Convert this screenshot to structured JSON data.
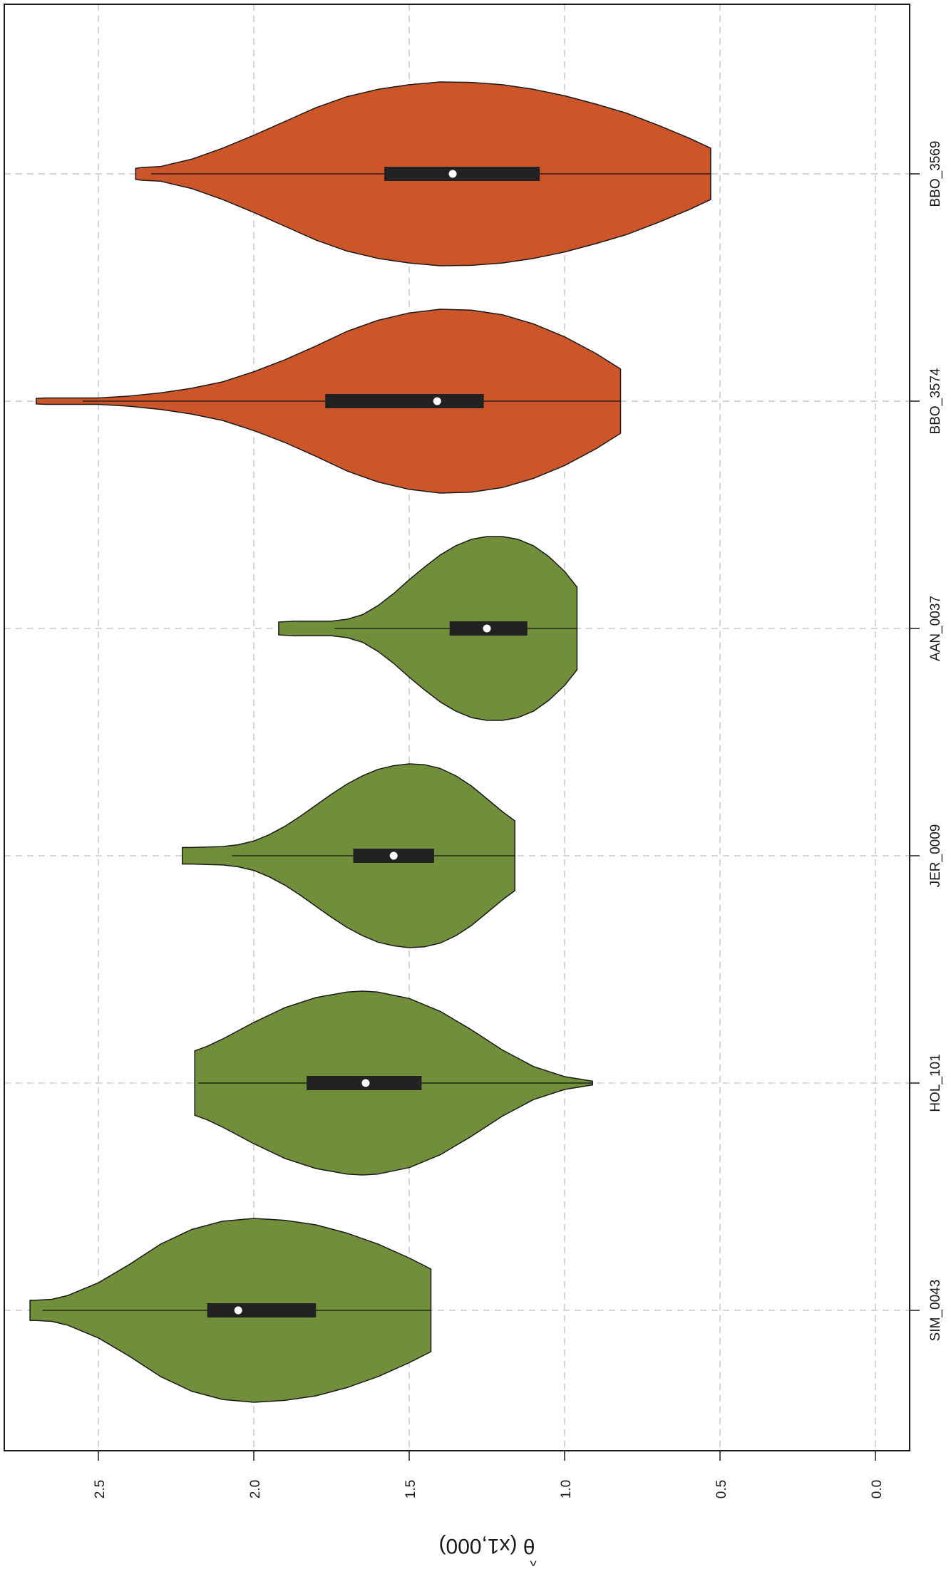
{
  "chart_data": {
    "type": "violin",
    "orientation": "rotated-90",
    "title": "",
    "value_axis": {
      "label_symbol": "θ",
      "label_hat": "^",
      "label_rest": " (x1,000)",
      "lim": [
        -0.1,
        2.82
      ],
      "ticks": [
        "0.0",
        "0.5",
        "1.0",
        "1.5",
        "2.0",
        "2.5"
      ],
      "grid": true
    },
    "colors": {
      "red_group": "#CC5529",
      "green_group": "#718E3B",
      "box": "#222222",
      "median": "#ffffff",
      "grid": "#c8c8c8",
      "outline": "#1a1a1a"
    },
    "groups": [
      {
        "name": "BBO_3569",
        "color_key": "red_group",
        "whisker_low": 0.53,
        "q1": 1.08,
        "median": 1.36,
        "q3": 1.58,
        "whisker_high": 2.33,
        "density": [
          [
            0.53,
            0.28
          ],
          [
            0.6,
            0.39
          ],
          [
            0.7,
            0.53
          ],
          [
            0.8,
            0.66
          ],
          [
            0.9,
            0.76
          ],
          [
            1.0,
            0.85
          ],
          [
            1.1,
            0.92
          ],
          [
            1.2,
            0.97
          ],
          [
            1.3,
            0.995
          ],
          [
            1.4,
            1.0
          ],
          [
            1.5,
            0.97
          ],
          [
            1.6,
            0.92
          ],
          [
            1.7,
            0.84
          ],
          [
            1.8,
            0.72
          ],
          [
            1.9,
            0.57
          ],
          [
            2.0,
            0.42
          ],
          [
            2.1,
            0.28
          ],
          [
            2.2,
            0.16
          ],
          [
            2.3,
            0.08
          ],
          [
            2.36,
            0.07
          ],
          [
            2.38,
            0.06
          ]
        ]
      },
      {
        "name": "BBO_3574",
        "color_key": "red_group",
        "whisker_low": 0.82,
        "q1": 1.26,
        "median": 1.41,
        "q3": 1.77,
        "whisker_high": 2.55,
        "density": [
          [
            0.82,
            0.35
          ],
          [
            0.9,
            0.52
          ],
          [
            1.0,
            0.7
          ],
          [
            1.1,
            0.84
          ],
          [
            1.2,
            0.94
          ],
          [
            1.3,
            0.99
          ],
          [
            1.4,
            1.0
          ],
          [
            1.5,
            0.96
          ],
          [
            1.6,
            0.88
          ],
          [
            1.7,
            0.76
          ],
          [
            1.8,
            0.6
          ],
          [
            1.9,
            0.45
          ],
          [
            2.0,
            0.32
          ],
          [
            2.1,
            0.21
          ],
          [
            2.2,
            0.14
          ],
          [
            2.3,
            0.09
          ],
          [
            2.4,
            0.055
          ],
          [
            2.5,
            0.035
          ],
          [
            2.6,
            0.035
          ],
          [
            2.67,
            0.035
          ],
          [
            2.7,
            0.03
          ]
        ]
      },
      {
        "name": "AAN_0037",
        "color_key": "green_group",
        "whisker_low": 0.96,
        "q1": 1.12,
        "median": 1.25,
        "q3": 1.37,
        "whisker_high": 1.74,
        "density": [
          [
            0.96,
            0.45
          ],
          [
            1.0,
            0.62
          ],
          [
            1.05,
            0.78
          ],
          [
            1.1,
            0.9
          ],
          [
            1.15,
            0.97
          ],
          [
            1.2,
            1.0
          ],
          [
            1.25,
            1.0
          ],
          [
            1.3,
            0.97
          ],
          [
            1.35,
            0.9
          ],
          [
            1.4,
            0.8
          ],
          [
            1.45,
            0.67
          ],
          [
            1.5,
            0.53
          ],
          [
            1.55,
            0.38
          ],
          [
            1.6,
            0.25
          ],
          [
            1.65,
            0.15
          ],
          [
            1.7,
            0.1
          ],
          [
            1.75,
            0.08
          ],
          [
            1.8,
            0.08
          ],
          [
            1.87,
            0.08
          ],
          [
            1.92,
            0.07
          ]
        ]
      },
      {
        "name": "JER_0009",
        "color_key": "green_group",
        "whisker_low": 1.16,
        "q1": 1.42,
        "median": 1.55,
        "q3": 1.68,
        "whisker_high": 2.07,
        "density": [
          [
            1.16,
            0.38
          ],
          [
            1.2,
            0.48
          ],
          [
            1.25,
            0.62
          ],
          [
            1.3,
            0.76
          ],
          [
            1.35,
            0.87
          ],
          [
            1.4,
            0.95
          ],
          [
            1.45,
            0.99
          ],
          [
            1.5,
            1.0
          ],
          [
            1.55,
            0.98
          ],
          [
            1.6,
            0.94
          ],
          [
            1.65,
            0.87
          ],
          [
            1.7,
            0.78
          ],
          [
            1.75,
            0.67
          ],
          [
            1.8,
            0.55
          ],
          [
            1.85,
            0.43
          ],
          [
            1.9,
            0.32
          ],
          [
            1.95,
            0.23
          ],
          [
            2.0,
            0.16
          ],
          [
            2.05,
            0.12
          ],
          [
            2.1,
            0.1
          ],
          [
            2.2,
            0.09
          ],
          [
            2.23,
            0.09
          ]
        ]
      },
      {
        "name": "HOL_101",
        "color_key": "green_group",
        "whisker_low": 0.91,
        "q1": 1.46,
        "median": 1.64,
        "q3": 1.83,
        "whisker_high": 2.18,
        "density": [
          [
            0.91,
            0.02
          ],
          [
            1.0,
            0.07
          ],
          [
            1.1,
            0.18
          ],
          [
            1.2,
            0.36
          ],
          [
            1.3,
            0.58
          ],
          [
            1.4,
            0.78
          ],
          [
            1.5,
            0.92
          ],
          [
            1.6,
            0.99
          ],
          [
            1.65,
            1.0
          ],
          [
            1.7,
            0.99
          ],
          [
            1.8,
            0.93
          ],
          [
            1.9,
            0.82
          ],
          [
            2.0,
            0.66
          ],
          [
            2.1,
            0.48
          ],
          [
            2.15,
            0.4
          ],
          [
            2.19,
            0.35
          ]
        ]
      },
      {
        "name": "SIM_0043",
        "color_key": "green_group",
        "whisker_low": 1.43,
        "q1": 1.8,
        "median": 2.05,
        "q3": 2.15,
        "whisker_high": 2.68,
        "density": [
          [
            1.43,
            0.45
          ],
          [
            1.5,
            0.57
          ],
          [
            1.6,
            0.72
          ],
          [
            1.7,
            0.84
          ],
          [
            1.8,
            0.93
          ],
          [
            1.9,
            0.98
          ],
          [
            2.0,
            1.0
          ],
          [
            2.1,
            0.97
          ],
          [
            2.2,
            0.88
          ],
          [
            2.3,
            0.72
          ],
          [
            2.4,
            0.5
          ],
          [
            2.5,
            0.3
          ],
          [
            2.6,
            0.16
          ],
          [
            2.65,
            0.12
          ],
          [
            2.7,
            0.11
          ],
          [
            2.72,
            0.11
          ]
        ]
      }
    ]
  }
}
